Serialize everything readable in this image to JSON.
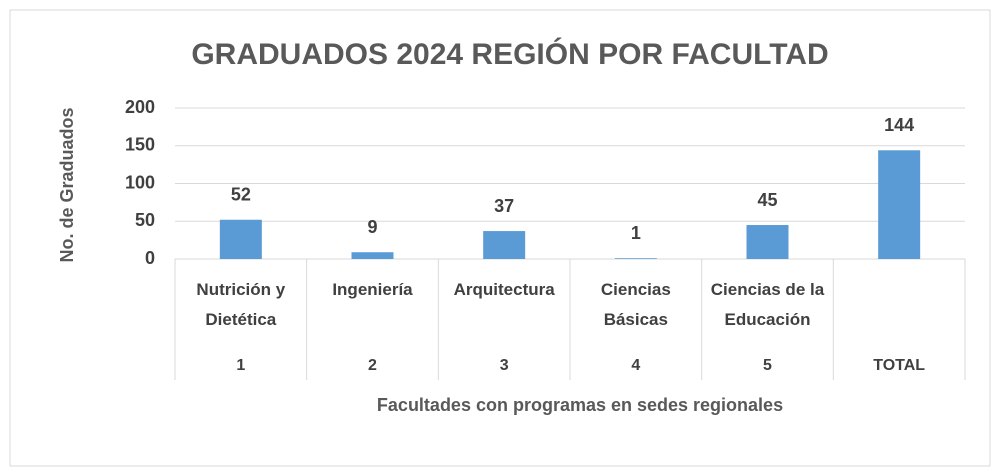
{
  "chart_data": {
    "type": "bar",
    "title": "GRADUADOS 2024 REGIÓN  POR FACULTAD",
    "y_label": "No. de Graduados",
    "x_label": "Facultades con programas en sedes regionales",
    "categories": [
      "Nutrición y Dietética",
      "Ingeniería",
      "Arquitectura",
      "Ciencias Básicas",
      "Ciencias de la Educación",
      null
    ],
    "subcategories": [
      "1",
      "2",
      "3",
      "4",
      "5",
      "TOTAL"
    ],
    "values": [
      52,
      9,
      37,
      1,
      45,
      144
    ],
    "color": "#5b9bd5",
    "ylim": [
      0,
      200
    ],
    "yticks": [
      0,
      50,
      100,
      150,
      200
    ],
    "grid": true
  }
}
